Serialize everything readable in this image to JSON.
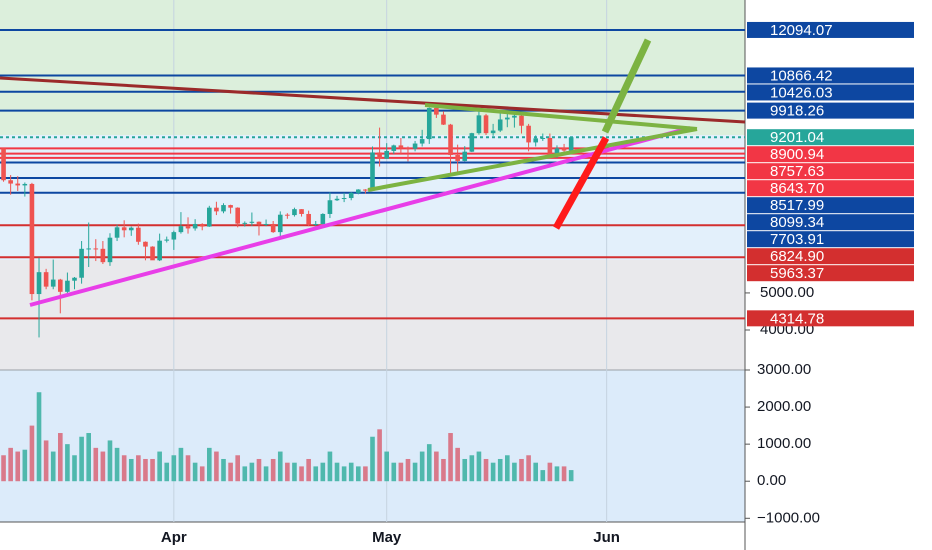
{
  "chart_data": {
    "type": "candlestick",
    "x": [
      0,
      1,
      2,
      3,
      4,
      5,
      6,
      7,
      8,
      9,
      10,
      11,
      12,
      13,
      14,
      15,
      16,
      17,
      18,
      19,
      20,
      21,
      22,
      23,
      24,
      25,
      26,
      27,
      28,
      29,
      30,
      31,
      32,
      33,
      34,
      35,
      36,
      37,
      38,
      39,
      40,
      41,
      42,
      43,
      44,
      45,
      46,
      47,
      48,
      49,
      50,
      51,
      52,
      53,
      54,
      55,
      56,
      57,
      58,
      59,
      60,
      61,
      62,
      63,
      64,
      65,
      66,
      67,
      68,
      69,
      70,
      71,
      72,
      73,
      74,
      75,
      76,
      77,
      78,
      79,
      80
    ],
    "open": [
      8900,
      8040,
      7950,
      7900,
      7940,
      4970,
      5560,
      5170,
      5360,
      5030,
      5330,
      5410,
      6190,
      6200,
      6190,
      5830,
      6490,
      6770,
      6690,
      6760,
      6380,
      6250,
      5880,
      6410,
      6440,
      6640,
      6800,
      6740,
      6860,
      6790,
      7300,
      7200,
      7370,
      7300,
      6870,
      6890,
      6920,
      6850,
      6860,
      6640,
      7110,
      7100,
      7260,
      7130,
      6840,
      6860,
      7130,
      7500,
      7540,
      7560,
      7700,
      7790,
      7760,
      8790,
      8620,
      8830,
      8980,
      8900,
      8890,
      9030,
      9150,
      9990,
      9810,
      9540,
      8720,
      8560,
      8810,
      9310,
      9790,
      9310,
      9380,
      9680,
      9730,
      9780,
      9510,
      9060,
      9170,
      9180,
      8720,
      8900,
      8840
    ],
    "high": [
      8900,
      8180,
      8150,
      7980,
      7970,
      5950,
      5650,
      5900,
      5380,
      5550,
      5430,
      6400,
      6900,
      6450,
      6400,
      6610,
      6840,
      6960,
      6790,
      6870,
      6390,
      6260,
      6600,
      6520,
      6680,
      7180,
      7040,
      6990,
      6880,
      7350,
      7460,
      7420,
      7380,
      7310,
      6930,
      7170,
      6930,
      6980,
      6940,
      7200,
      7150,
      7300,
      7260,
      7220,
      6940,
      7150,
      7710,
      7620,
      7700,
      7720,
      7800,
      7800,
      8950,
      9460,
      9040,
      9000,
      9180,
      8950,
      9100,
      9400,
      10000,
      10050,
      9900,
      9560,
      9000,
      8960,
      9320,
      9920,
      9830,
      9560,
      9880,
      9900,
      9850,
      9800,
      9560,
      9250,
      9300,
      9300,
      8980,
      9020,
      9220
    ],
    "low": [
      8000,
      7650,
      7750,
      7600,
      4800,
      3800,
      5100,
      5100,
      4450,
      5000,
      5100,
      5250,
      5700,
      5860,
      5780,
      5730,
      6400,
      6500,
      6540,
      6300,
      5880,
      5900,
      5860,
      6360,
      6160,
      6600,
      6600,
      6680,
      6690,
      6780,
      7100,
      7150,
      7140,
      6770,
      6790,
      6810,
      6550,
      6800,
      6620,
      6480,
      7000,
      7060,
      7060,
      6800,
      6800,
      6850,
      7020,
      7480,
      7450,
      7500,
      7660,
      7680,
      7750,
      8410,
      8620,
      8750,
      8730,
      8550,
      8820,
      8950,
      9020,
      9720,
      9530,
      8200,
      8200,
      8550,
      8800,
      9270,
      9260,
      9240,
      9340,
      9470,
      9460,
      9300,
      8820,
      8950,
      9100,
      8700,
      8640,
      8720,
      8830
    ],
    "close": [
      8040,
      7950,
      7900,
      7940,
      4970,
      5560,
      5170,
      5360,
      5030,
      5330,
      5410,
      6190,
      6200,
      6190,
      5830,
      6490,
      6770,
      6690,
      6760,
      6380,
      6250,
      5880,
      6410,
      6440,
      6640,
      6800,
      6740,
      6860,
      6790,
      7300,
      7200,
      7370,
      7300,
      6870,
      6890,
      6920,
      6850,
      6860,
      6640,
      7110,
      7100,
      7260,
      7130,
      6840,
      6860,
      7130,
      7500,
      7540,
      7560,
      7700,
      7790,
      7760,
      8790,
      8620,
      8830,
      8980,
      8900,
      8890,
      9030,
      9150,
      9990,
      9810,
      9540,
      8720,
      8560,
      8810,
      9310,
      9790,
      9310,
      9380,
      9680,
      9730,
      9780,
      9510,
      9060,
      9170,
      9180,
      8720,
      8900,
      8840,
      9200
    ],
    "volume": [
      700,
      900,
      800,
      850,
      1500,
      2400,
      1100,
      800,
      1300,
      1000,
      700,
      1200,
      1300,
      900,
      800,
      1100,
      900,
      700,
      600,
      700,
      600,
      600,
      800,
      500,
      700,
      900,
      700,
      500,
      400,
      900,
      800,
      600,
      500,
      700,
      400,
      500,
      600,
      400,
      600,
      800,
      500,
      500,
      400,
      600,
      400,
      500,
      800,
      500,
      400,
      500,
      400,
      400,
      1200,
      1400,
      800,
      500,
      500,
      600,
      500,
      800,
      1000,
      800,
      600,
      1300,
      900,
      600,
      700,
      800,
      600,
      500,
      600,
      700,
      500,
      600,
      700,
      500,
      300,
      500,
      400,
      400,
      300
    ],
    "up_color": "#26a69a",
    "down_color": "#ef5350",
    "volume_up_color": "#4fb8ad",
    "volume_down_color": "#d9798a",
    "xlim": [
      -0.5,
      104.5
    ],
    "xticks": [
      {
        "value": 24,
        "label": "Apr"
      },
      {
        "value": 54,
        "label": "May"
      },
      {
        "value": 85,
        "label": "Jun"
      }
    ],
    "ylim": [
      2921,
      12902
    ],
    "yticks": [
      {
        "value": 5000,
        "label": "5000.00"
      },
      {
        "value": 4000,
        "label": "4000.00"
      }
    ],
    "volume_ylim": [
      -1100,
      3000
    ],
    "volume_yticks": [
      {
        "value": 3000,
        "label": "3000.00"
      },
      {
        "value": 2000,
        "label": "2000.00"
      },
      {
        "value": 1000,
        "label": "1000.00"
      },
      {
        "value": 0,
        "label": "0.00"
      },
      {
        "value": -1000,
        "label": "−1000.00"
      }
    ],
    "levels": [
      {
        "value": 12094.07,
        "label": "12094.07",
        "color": "#0d47a1"
      },
      {
        "value": 10866.42,
        "label": "10866.42",
        "color": "#0d47a1"
      },
      {
        "value": 10426.03,
        "label": "10426.03",
        "color": "#0d47a1"
      },
      {
        "value": 9918.26,
        "label": "9918.26",
        "color": "#0d47a1"
      },
      {
        "value": 9201.04,
        "label": "9201.04",
        "color": "#26a69a"
      },
      {
        "value": 8900.94,
        "label": "8900.94",
        "color": "#f23645"
      },
      {
        "value": 8757.63,
        "label": "8757.63",
        "color": "#f23645"
      },
      {
        "value": 8643.7,
        "label": "8643.70",
        "color": "#f23645"
      },
      {
        "value": 8517.99,
        "label": "8517.99",
        "color": "#0d47a1"
      },
      {
        "value": 8099.34,
        "label": "8099.34",
        "color": "#0d47a1"
      },
      {
        "value": 7703.91,
        "label": "7703.91",
        "color": "#0d47a1"
      },
      {
        "value": 6824.9,
        "label": "6824.90",
        "color": "#d32f2f"
      },
      {
        "value": 5963.37,
        "label": "5963.37",
        "color": "#d32f2f"
      },
      {
        "value": 4314.78,
        "label": "4314.78",
        "color": "#d32f2f"
      }
    ]
  }
}
